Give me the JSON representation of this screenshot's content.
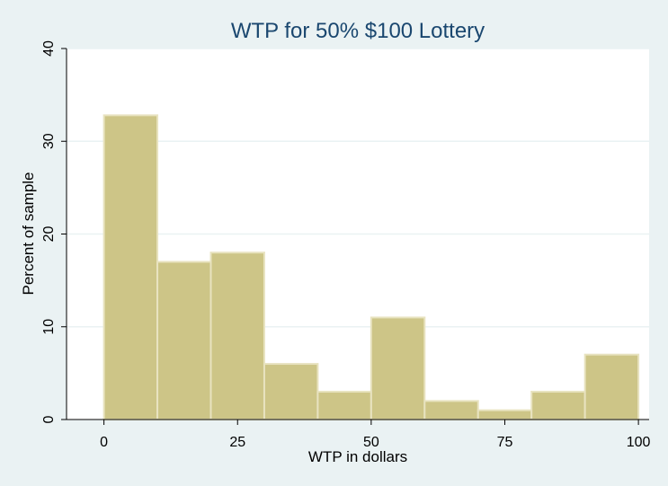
{
  "chart_data": {
    "type": "bar",
    "title": "WTP for 50% $100 Lottery",
    "xlabel": "WTP in dollars",
    "ylabel": "Percent of sample",
    "xlim": [
      -7,
      102
    ],
    "ylim": [
      0,
      40
    ],
    "xticks": [
      0,
      25,
      50,
      75,
      100
    ],
    "yticks": [
      0,
      10,
      20,
      30,
      40
    ],
    "grid": true,
    "bins": [
      {
        "start": 0,
        "end": 10,
        "value": 32.8
      },
      {
        "start": 10,
        "end": 20,
        "value": 17
      },
      {
        "start": 20,
        "end": 30,
        "value": 18
      },
      {
        "start": 30,
        "end": 40,
        "value": 6
      },
      {
        "start": 40,
        "end": 50,
        "value": 3
      },
      {
        "start": 50,
        "end": 60,
        "value": 11
      },
      {
        "start": 60,
        "end": 70,
        "value": 2
      },
      {
        "start": 70,
        "end": 80,
        "value": 1
      },
      {
        "start": 80,
        "end": 90,
        "value": 3
      },
      {
        "start": 90,
        "end": 100,
        "value": 7
      }
    ],
    "colors": {
      "background": "#eaf2f3",
      "plot_background": "#ffffff",
      "bar_fill": "#cdc587",
      "bar_stroke": "#e8e3c0",
      "grid": "#eaf2f3",
      "title": "#1a476f"
    }
  }
}
